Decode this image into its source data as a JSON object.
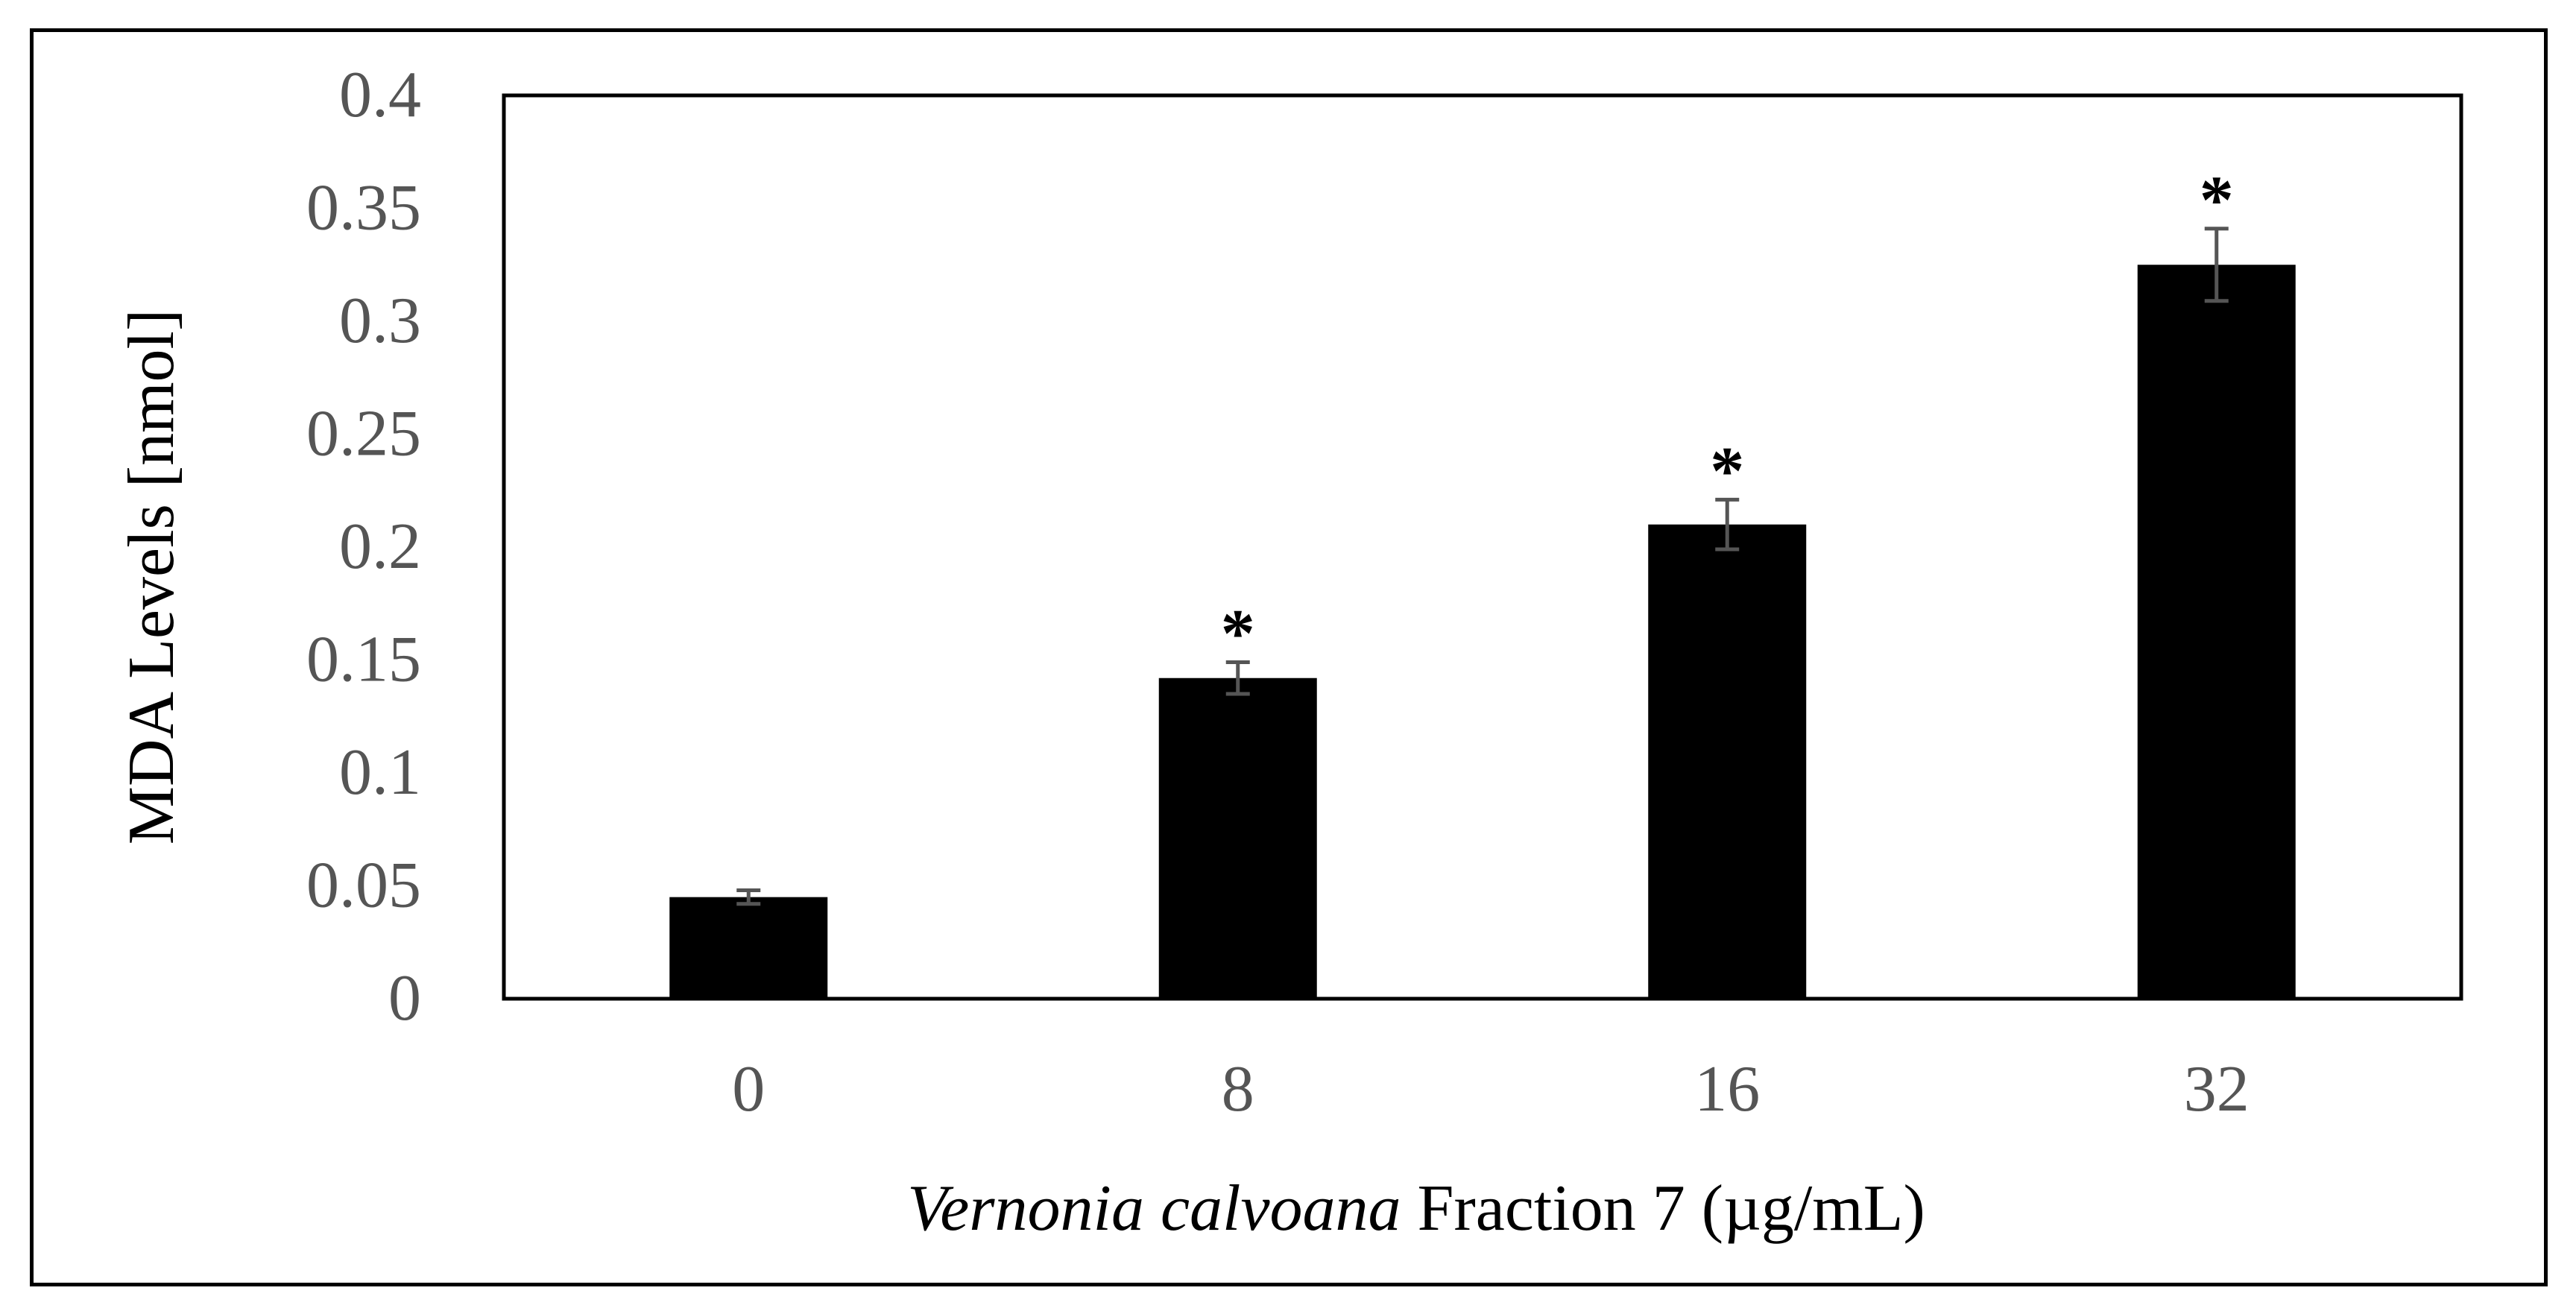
{
  "chart_data": {
    "type": "bar",
    "title": "",
    "categories": [
      "0",
      "8",
      "16",
      "32"
    ],
    "values": [
      0.045,
      0.142,
      0.21,
      0.325
    ],
    "errors": [
      0.003,
      0.007,
      0.011,
      0.016
    ],
    "significance": [
      "",
      "*",
      "*",
      "*"
    ],
    "ylim": [
      0,
      0.4
    ],
    "yticks": [
      "0",
      "0.05",
      "0.1",
      "0.15",
      "0.2",
      "0.25",
      "0.3",
      "0.35",
      "0.4"
    ],
    "ylabel": "MDA Levels [nmol]",
    "xlabel_italic": "Vernonia calvoana",
    "xlabel_rest": " Fraction 7 (µg/mL)",
    "grid": false,
    "legend": "none",
    "colors": {
      "bar": "#000000",
      "error_bar": "#555555",
      "tick_text": "#555555",
      "axis": "#000000"
    }
  }
}
